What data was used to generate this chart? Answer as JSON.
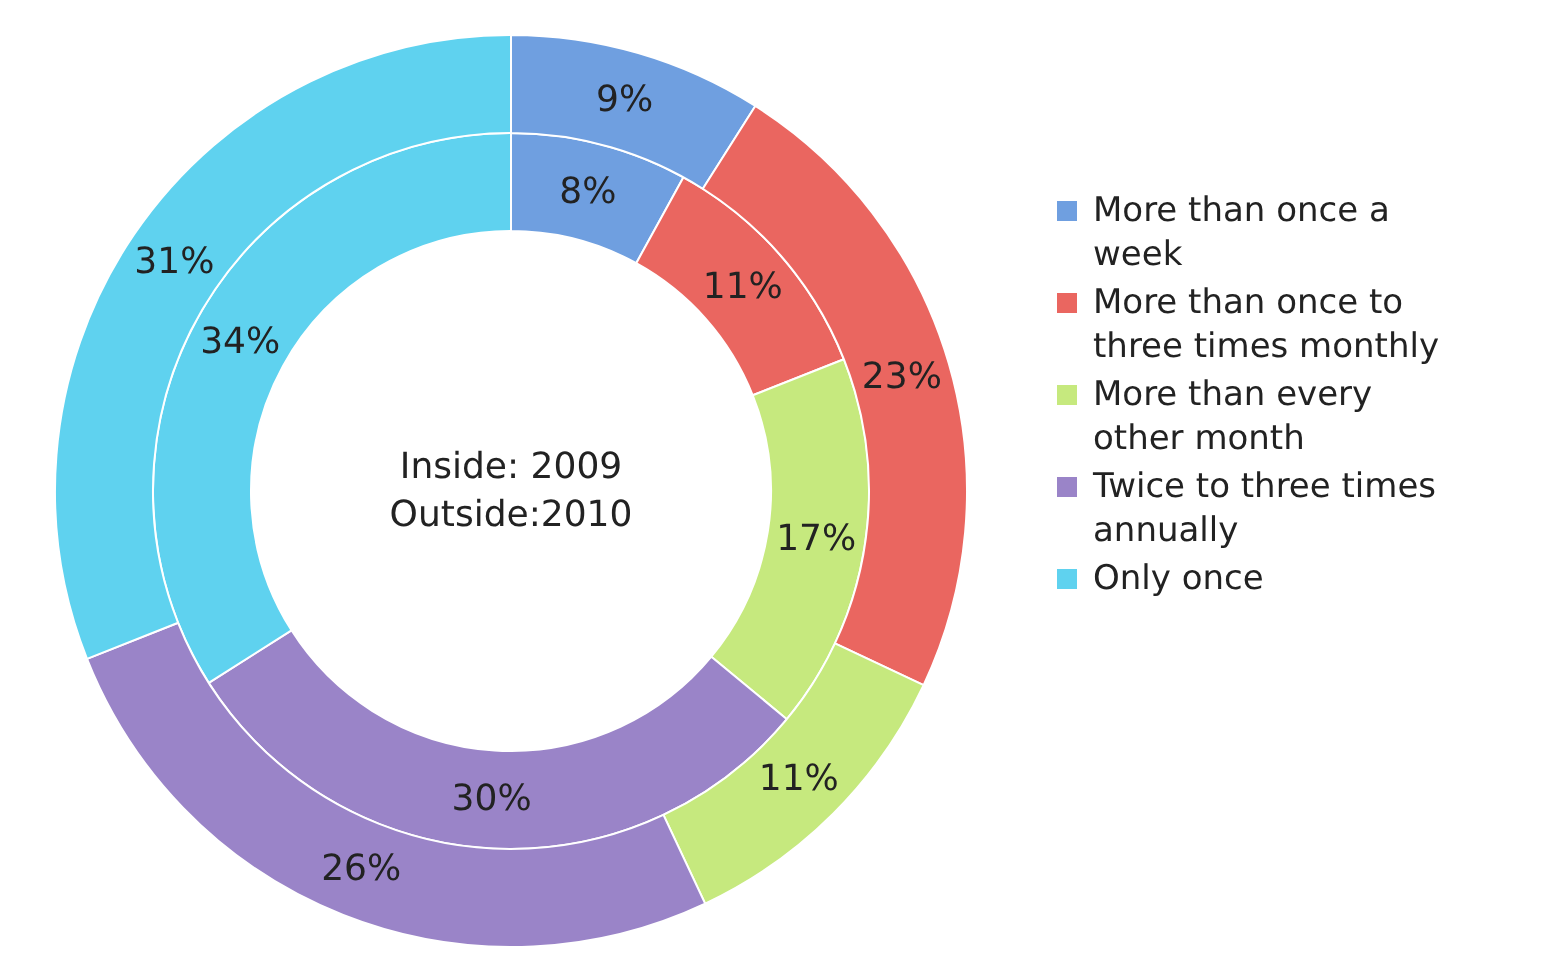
{
  "chart_data": {
    "type": "donut",
    "categories": [
      "More than once a week",
      "More than once to three times monthly",
      "More than every other month",
      "Twice to three times annually",
      "Only once"
    ],
    "colors": [
      "#6f9fe0",
      "#ea6660",
      "#c6e97e",
      "#9a84c8",
      "#5fd2ef"
    ],
    "series": [
      {
        "values": [
          8,
          11,
          17,
          30,
          34
        ],
        "value_labels": [
          "8%",
          "11%",
          "17%",
          "30%",
          "34%"
        ]
      },
      {
        "values": [
          9,
          23,
          11,
          26,
          31
        ],
        "value_labels": [
          "9%",
          "23%",
          "11%",
          "26%",
          "31%"
        ]
      }
    ],
    "annotations": [
      "Inside: 2009",
      "Outside:2010"
    ],
    "legend": "right"
  }
}
